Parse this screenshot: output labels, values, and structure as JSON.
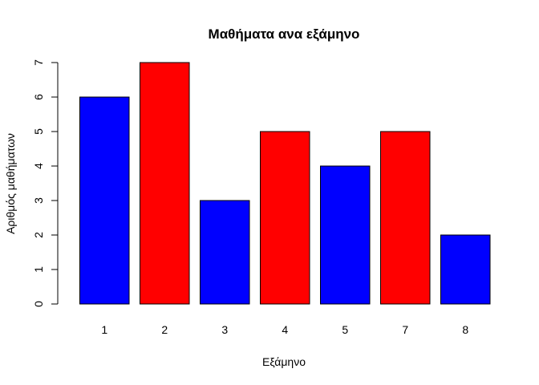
{
  "chart_data": {
    "type": "bar",
    "title": "Μαθήματα ανα εξάμηνο",
    "xlabel": "Εξάμηνο",
    "ylabel": "Αριθμός μαθήματων",
    "categories": [
      "1",
      "2",
      "3",
      "4",
      "5",
      "7",
      "8"
    ],
    "values": [
      6,
      7,
      3,
      5,
      4,
      5,
      2
    ],
    "colors": [
      "#0000FF",
      "#FF0000",
      "#0000FF",
      "#FF0000",
      "#0000FF",
      "#FF0000",
      "#0000FF"
    ],
    "ylim": [
      0,
      7
    ],
    "yticks": [
      0,
      1,
      2,
      3,
      4,
      5,
      6,
      7
    ],
    "grid": false,
    "legend": "none"
  }
}
